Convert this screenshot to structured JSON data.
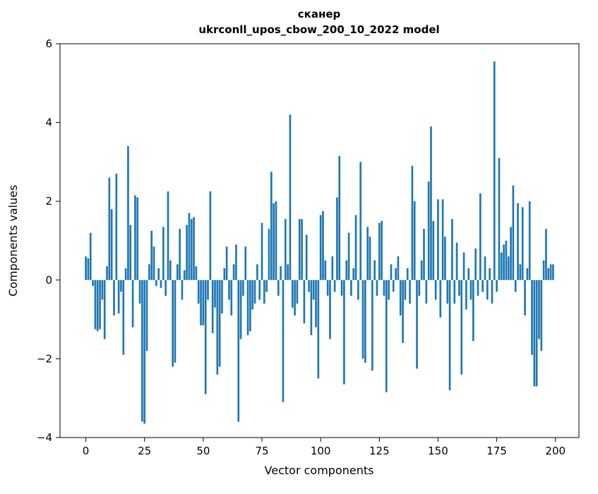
{
  "figure": {
    "title_line1": "сканер",
    "title_line2": "ukrconll_upos_cbow_200_10_2022 model",
    "xlabel": "Vector components",
    "ylabel": "Components values"
  },
  "chart_data": {
    "type": "bar",
    "title": "сканер\nukrconll_upos_cbow_200_10_2022 model",
    "xlabel": "Vector components",
    "ylabel": "Components values",
    "bar_color": "#1f77b4",
    "xlim": [
      -11,
      210
    ],
    "ylim": [
      -4,
      6
    ],
    "xticks": [
      0,
      25,
      50,
      75,
      100,
      125,
      150,
      175,
      200
    ],
    "yticks": [
      -4,
      -2,
      0,
      2,
      4,
      6
    ],
    "grid": false,
    "legend": null,
    "x_start": 0,
    "values": [
      0.6,
      0.55,
      1.2,
      -0.15,
      -1.25,
      -1.3,
      -1.25,
      -0.5,
      -1.5,
      0.35,
      2.6,
      1.8,
      -0.9,
      2.7,
      -0.85,
      -0.3,
      -1.9,
      0.3,
      3.4,
      1.4,
      -1.2,
      2.15,
      2.1,
      -0.6,
      -3.6,
      -3.65,
      -1.8,
      0.4,
      1.25,
      0.85,
      -0.15,
      0.3,
      -0.2,
      1.35,
      -0.4,
      2.25,
      0.5,
      -2.2,
      -2.1,
      0.4,
      1.3,
      -0.5,
      0.25,
      1.4,
      1.7,
      1.55,
      1.6,
      0.35,
      -0.6,
      -1.15,
      -1.15,
      -2.9,
      -0.5,
      2.25,
      -1.35,
      -0.7,
      -2.4,
      -2.2,
      -0.85,
      0.3,
      0.85,
      -0.5,
      -0.9,
      0.4,
      0.9,
      -3.6,
      -1.5,
      -0.4,
      0.85,
      -1.4,
      -1.3,
      -0.75,
      -0.6,
      0.4,
      -0.5,
      1.45,
      -0.6,
      -0.3,
      1.3,
      2.75,
      1.95,
      2.0,
      -0.4,
      0.35,
      -3.1,
      1.55,
      0.4,
      4.2,
      -0.7,
      -0.9,
      -0.6,
      1.55,
      1.55,
      -1.1,
      1.15,
      -0.3,
      -1.4,
      -0.5,
      -1.2,
      -2.5,
      1.65,
      1.75,
      0.5,
      -0.4,
      -1.5,
      0.6,
      -0.3,
      2.1,
      3.15,
      -0.4,
      -2.65,
      0.5,
      1.2,
      -0.4,
      0.3,
      1.65,
      -0.5,
      3.0,
      -2.0,
      -2.1,
      1.35,
      1.1,
      -2.3,
      0.5,
      -0.4,
      1.45,
      1.5,
      -0.4,
      -2.85,
      -0.5,
      0.4,
      -0.3,
      0.3,
      0.6,
      -0.9,
      -1.6,
      -0.5,
      0.3,
      -0.6,
      2.9,
      2.0,
      -2.25,
      -0.4,
      0.5,
      1.3,
      -0.6,
      2.5,
      3.9,
      1.5,
      -0.5,
      2.05,
      -0.95,
      2.05,
      1.1,
      -0.6,
      -2.8,
      1.55,
      -0.6,
      0.95,
      -0.4,
      -2.4,
      0.7,
      -0.75,
      0.3,
      -0.5,
      -1.55,
      0.8,
      -0.4,
      2.2,
      -0.3,
      0.6,
      -0.5,
      0.3,
      -0.6,
      5.55,
      -0.3,
      3.1,
      0.7,
      0.9,
      1.0,
      0.6,
      1.35,
      2.4,
      -0.3,
      1.95,
      0.4,
      1.85,
      -0.9,
      0.3,
      2.0,
      -1.9,
      -2.7,
      -2.7,
      -1.5,
      -1.8,
      0.5,
      1.3,
      0.3,
      0.4,
      0.4
    ]
  }
}
